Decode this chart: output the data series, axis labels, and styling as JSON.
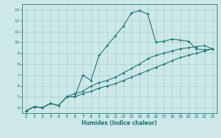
{
  "xlabel": "Humidex (Indice chaleur)",
  "ylabel": "",
  "bg_color": "#cce8e8",
  "grid_color": "#aacccc",
  "line_color": "#1a7070",
  "xlim": [
    -0.5,
    23.5
  ],
  "ylim": [
    3.5,
    13.5
  ],
  "xticks": [
    0,
    1,
    2,
    3,
    4,
    5,
    6,
    7,
    8,
    9,
    10,
    11,
    12,
    13,
    14,
    15,
    16,
    17,
    18,
    19,
    20,
    21,
    22,
    23
  ],
  "yticks": [
    4,
    5,
    6,
    7,
    8,
    9,
    10,
    11,
    12,
    13
  ],
  "curve1_x": [
    0,
    1,
    2,
    3,
    4,
    5,
    6,
    7,
    8,
    9,
    10,
    11,
    12,
    13,
    14,
    15,
    16,
    17,
    18,
    19,
    20,
    21,
    22,
    23
  ],
  "curve1_y": [
    3.7,
    4.1,
    4.0,
    4.4,
    4.2,
    5.0,
    5.0,
    7.0,
    6.5,
    8.8,
    9.7,
    10.6,
    11.5,
    12.7,
    12.9,
    12.6,
    10.0,
    10.1,
    10.3,
    10.2,
    10.1,
    9.4,
    9.3,
    9.4
  ],
  "curve2_x": [
    0,
    1,
    2,
    3,
    4,
    5,
    6,
    7,
    8,
    9,
    10,
    11,
    12,
    13,
    14,
    15,
    16,
    17,
    18,
    19,
    20,
    21,
    22,
    23
  ],
  "curve2_y": [
    3.7,
    4.1,
    4.0,
    4.4,
    4.2,
    5.0,
    5.3,
    5.5,
    6.0,
    6.3,
    6.5,
    6.8,
    7.2,
    7.6,
    8.0,
    8.5,
    8.8,
    9.0,
    9.2,
    9.4,
    9.5,
    9.6,
    9.7,
    9.4
  ],
  "curve3_x": [
    0,
    1,
    2,
    3,
    4,
    5,
    6,
    7,
    8,
    9,
    10,
    11,
    12,
    13,
    14,
    15,
    16,
    17,
    18,
    19,
    20,
    21,
    22,
    23
  ],
  "curve3_y": [
    3.7,
    4.1,
    4.0,
    4.4,
    4.2,
    5.0,
    5.0,
    5.3,
    5.5,
    5.8,
    6.0,
    6.2,
    6.5,
    6.8,
    7.1,
    7.4,
    7.7,
    8.0,
    8.3,
    8.6,
    8.8,
    9.0,
    9.2,
    9.4
  ],
  "tick_fontsize": 4.5,
  "xlabel_fontsize": 5.5,
  "marker_size": 2.5,
  "line_width": 0.8
}
